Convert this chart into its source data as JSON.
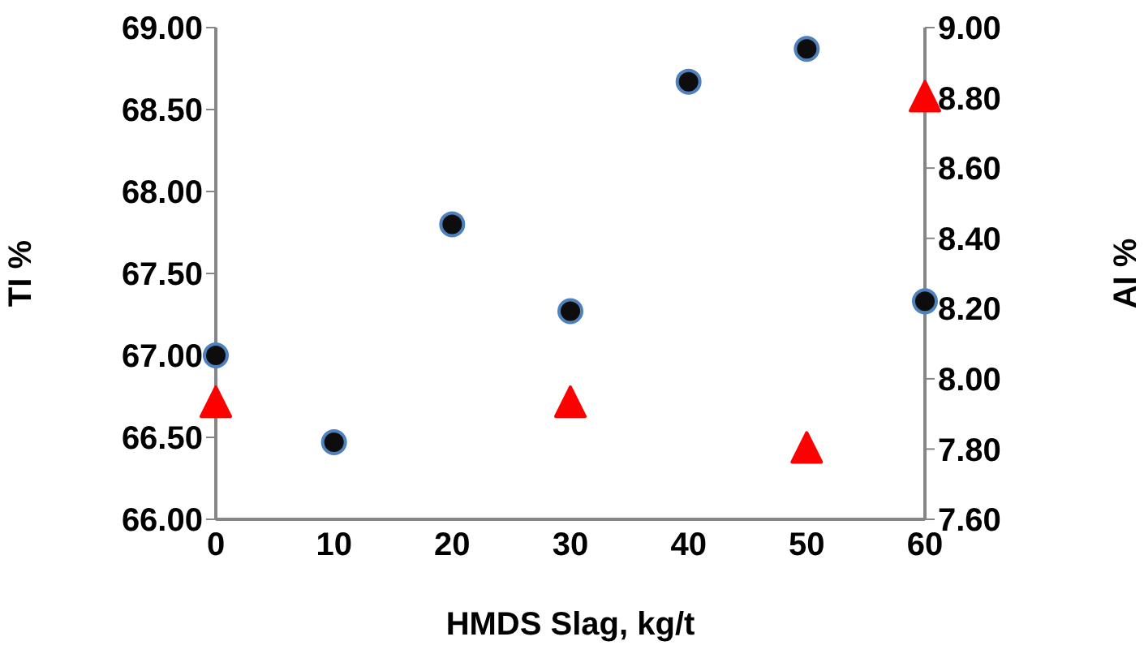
{
  "chart_data": {
    "type": "scatter",
    "xlabel": "HMDS Slag, kg/t",
    "ylabel": "TI %",
    "y2label": "AI %",
    "categories": [
      "0",
      "10",
      "20",
      "30",
      "40",
      "50",
      "60"
    ],
    "series": [
      {
        "color": "#0d0d0d",
        "marker": "circle",
        "values": [
          67.0,
          66.47,
          67.8,
          67.27,
          68.67,
          68.87,
          67.33
        ]
      },
      {
        "color": "#ff0000",
        "marker": "triangle",
        "axis": "y2",
        "values": [
          7.93,
          null,
          null,
          7.93,
          null,
          7.8,
          8.8
        ]
      }
    ],
    "ylim": [
      66,
      69
    ],
    "yticks": [
      {
        "value": 66,
        "label": "66.00"
      },
      {
        "value": 66.5,
        "label": "66.50"
      },
      {
        "value": 67,
        "label": "67.00"
      },
      {
        "value": 67.5,
        "label": "67.50"
      },
      {
        "value": 68,
        "label": "68.00"
      },
      {
        "value": 68.5,
        "label": "68.50"
      },
      {
        "value": 69,
        "label": "69.00"
      }
    ],
    "y2lim": [
      7.6,
      9
    ],
    "y2ticks": [
      {
        "value": 7.6,
        "label": "7.60"
      },
      {
        "value": 7.8,
        "label": "7.80"
      },
      {
        "value": 8,
        "label": "8.00"
      },
      {
        "value": 8.2,
        "label": "8.20"
      },
      {
        "value": 8.4,
        "label": "8.40"
      },
      {
        "value": 8.6,
        "label": "8.60"
      },
      {
        "value": 8.8,
        "label": "8.80"
      },
      {
        "value": 9,
        "label": "9.00"
      }
    ],
    "grid": false,
    "legend": false
  }
}
